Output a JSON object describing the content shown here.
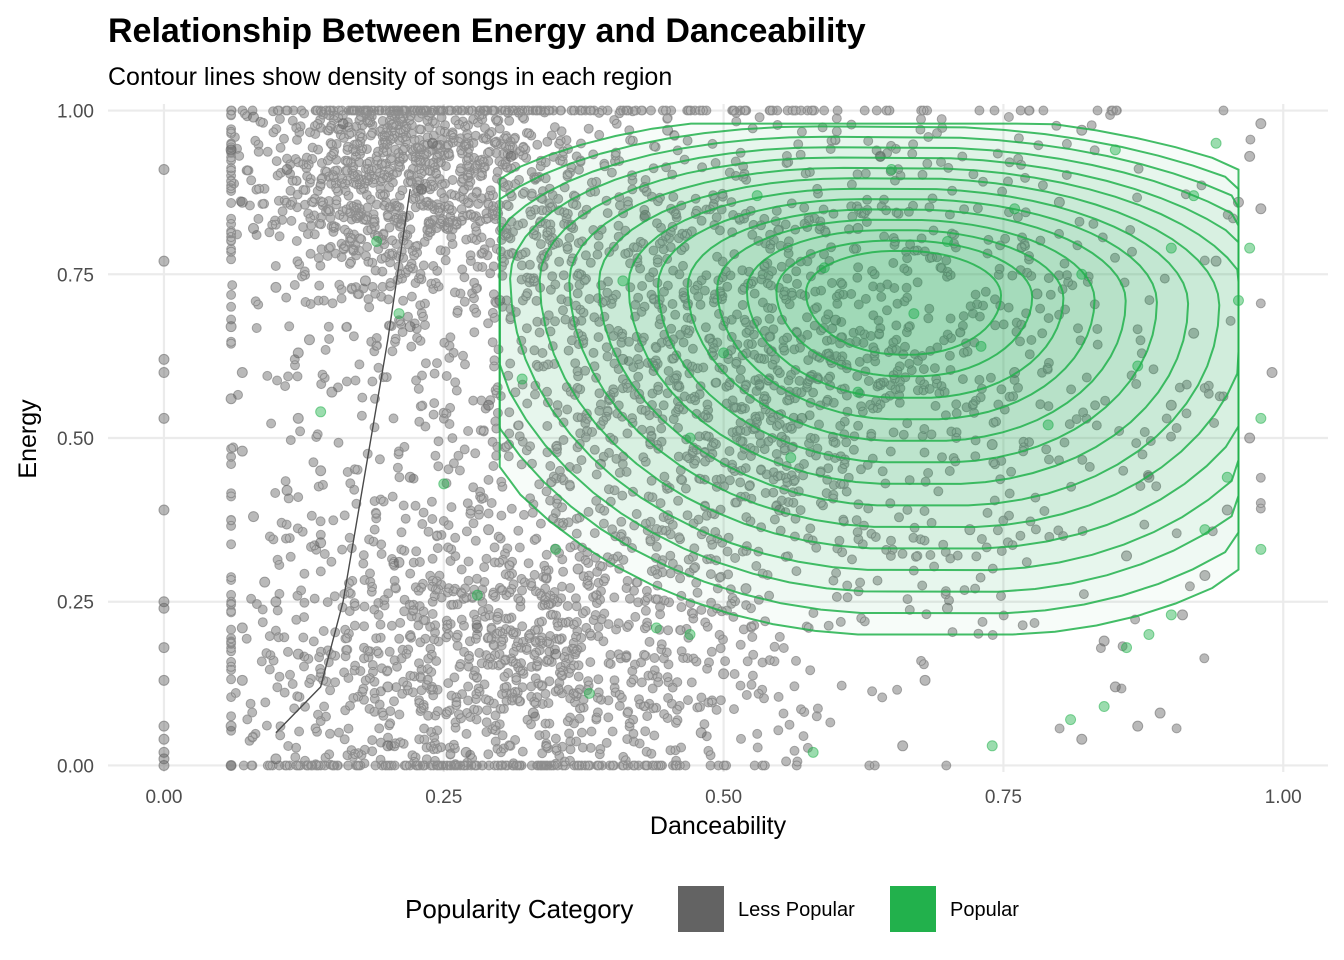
{
  "colors": {
    "less_popular": "#636363",
    "popular": "#22b14c",
    "grid": "#ebebeb"
  },
  "chart_data": {
    "type": "scatter",
    "title": "Relationship Between Energy and Danceability",
    "subtitle": "Contour lines show density of songs in each region",
    "xlabel": "Danceability",
    "ylabel": "Energy",
    "xlim": [
      -0.05,
      1.04
    ],
    "ylim": [
      -0.01,
      1.01
    ],
    "x_ticks": [
      0.0,
      0.25,
      0.5,
      0.75,
      1.0
    ],
    "x_tick_labels": [
      "0.00",
      "0.25",
      "0.50",
      "0.75",
      "1.00"
    ],
    "y_ticks": [
      0.0,
      0.25,
      0.5,
      0.75,
      1.0
    ],
    "y_tick_labels": [
      "0.00",
      "0.25",
      "0.50",
      "0.75",
      "1.00"
    ],
    "grid": true,
    "legend": {
      "title": "Popularity Category",
      "position": "bottom",
      "entries": [
        "Less Popular",
        "Popular"
      ]
    },
    "series": [
      {
        "name": "Less Popular",
        "color": "#636363",
        "points": [
          [
            0.0,
            0.0
          ],
          [
            0.0,
            0.01
          ],
          [
            0.0,
            0.02
          ],
          [
            0.0,
            0.04
          ],
          [
            0.0,
            0.06
          ],
          [
            0.0,
            0.13
          ],
          [
            0.0,
            0.18
          ],
          [
            0.0,
            0.24
          ],
          [
            0.0,
            0.25
          ],
          [
            0.0,
            0.39
          ],
          [
            0.0,
            0.53
          ],
          [
            0.0,
            0.6
          ],
          [
            0.0,
            0.62
          ],
          [
            0.0,
            0.77
          ],
          [
            0.0,
            0.91
          ],
          [
            0.06,
            0.0
          ],
          [
            0.06,
            0.06
          ],
          [
            0.07,
            0.13
          ],
          [
            0.07,
            0.21
          ],
          [
            0.07,
            0.48
          ],
          [
            0.06,
            0.56
          ],
          [
            0.07,
            0.6
          ],
          [
            0.06,
            0.67
          ],
          [
            0.07,
            0.86
          ],
          [
            0.06,
            0.94
          ],
          [
            0.08,
            0.38
          ],
          [
            0.08,
            0.99
          ],
          [
            0.08,
            0.82
          ],
          [
            0.09,
            0.28
          ],
          [
            0.1,
            0.01
          ],
          [
            0.1,
            0.25
          ],
          [
            0.11,
            0.42
          ],
          [
            0.12,
            0.53
          ],
          [
            0.12,
            0.63
          ],
          [
            0.13,
            0.65
          ],
          [
            0.12,
            0.17
          ],
          [
            0.11,
            0.91
          ],
          [
            0.1,
            0.73
          ],
          [
            0.14,
            0.45
          ],
          [
            0.15,
            0.57
          ],
          [
            0.14,
            0.34
          ],
          [
            0.16,
            0.98
          ],
          [
            0.18,
            0.74
          ],
          [
            0.2,
            0.03
          ],
          [
            0.2,
            0.12
          ],
          [
            0.21,
            0.31
          ],
          [
            0.22,
            0.44
          ],
          [
            0.22,
            0.67
          ],
          [
            0.23,
            0.88
          ],
          [
            0.24,
            0.95
          ],
          [
            0.27,
            0.02
          ],
          [
            0.28,
            0.21
          ],
          [
            0.29,
            0.36
          ],
          [
            0.29,
            0.55
          ],
          [
            0.3,
            0.71
          ],
          [
            0.31,
            0.93
          ],
          [
            0.33,
            0.08
          ],
          [
            0.35,
            0.17
          ],
          [
            0.37,
            0.3
          ],
          [
            0.39,
            0.46
          ],
          [
            0.41,
            0.62
          ],
          [
            0.43,
            0.84
          ],
          [
            0.45,
            0.97
          ],
          [
            0.48,
            0.05
          ],
          [
            0.5,
            0.14
          ],
          [
            0.52,
            0.27
          ],
          [
            0.55,
            0.39
          ],
          [
            0.57,
            0.53
          ],
          [
            0.6,
            0.68
          ],
          [
            0.62,
            0.82
          ],
          [
            0.64,
            0.93
          ],
          [
            0.66,
            0.03
          ],
          [
            0.68,
            0.13
          ],
          [
            0.7,
            0.24
          ],
          [
            0.72,
            0.36
          ],
          [
            0.74,
            0.49
          ],
          [
            0.76,
            0.6
          ],
          [
            0.78,
            0.72
          ],
          [
            0.8,
            0.86
          ],
          [
            0.82,
            0.97
          ],
          [
            0.84,
            0.19
          ],
          [
            0.86,
            0.32
          ],
          [
            0.88,
            0.44
          ],
          [
            0.9,
            0.55
          ],
          [
            0.92,
            0.66
          ],
          [
            0.94,
            0.77
          ],
          [
            0.96,
            0.86
          ],
          [
            0.97,
            0.93
          ],
          [
            0.98,
            0.85
          ],
          [
            0.99,
            0.6
          ],
          [
            0.98,
            0.98
          ],
          [
            0.97,
            0.5
          ],
          [
            0.95,
            0.39
          ],
          [
            0.93,
            0.29
          ],
          [
            0.91,
            0.23
          ],
          [
            0.89,
            0.08
          ],
          [
            0.87,
            0.06
          ],
          [
            0.85,
            0.12
          ],
          [
            0.82,
            0.04
          ]
        ]
      },
      {
        "name": "Popular",
        "color": "#22b14c",
        "points": [
          [
            0.14,
            0.54
          ],
          [
            0.19,
            0.8
          ],
          [
            0.21,
            0.69
          ],
          [
            0.25,
            0.43
          ],
          [
            0.28,
            0.26
          ],
          [
            0.32,
            0.59
          ],
          [
            0.35,
            0.33
          ],
          [
            0.38,
            0.11
          ],
          [
            0.41,
            0.74
          ],
          [
            0.44,
            0.21
          ],
          [
            0.47,
            0.5
          ],
          [
            0.5,
            0.63
          ],
          [
            0.53,
            0.87
          ],
          [
            0.56,
            0.47
          ],
          [
            0.59,
            0.76
          ],
          [
            0.62,
            0.57
          ],
          [
            0.65,
            0.91
          ],
          [
            0.67,
            0.69
          ],
          [
            0.7,
            0.8
          ],
          [
            0.73,
            0.64
          ],
          [
            0.76,
            0.85
          ],
          [
            0.79,
            0.52
          ],
          [
            0.82,
            0.75
          ],
          [
            0.85,
            0.94
          ],
          [
            0.87,
            0.61
          ],
          [
            0.9,
            0.79
          ],
          [
            0.92,
            0.87
          ],
          [
            0.93,
            0.36
          ],
          [
            0.94,
            0.95
          ],
          [
            0.95,
            0.44
          ],
          [
            0.96,
            0.71
          ],
          [
            0.97,
            0.79
          ],
          [
            0.98,
            0.53
          ],
          [
            0.98,
            0.33
          ],
          [
            0.9,
            0.23
          ],
          [
            0.88,
            0.2
          ],
          [
            0.86,
            0.18
          ],
          [
            0.84,
            0.09
          ],
          [
            0.81,
            0.07
          ],
          [
            0.74,
            0.03
          ],
          [
            0.58,
            0.02
          ],
          [
            0.47,
            0.2
          ]
        ]
      }
    ]
  }
}
